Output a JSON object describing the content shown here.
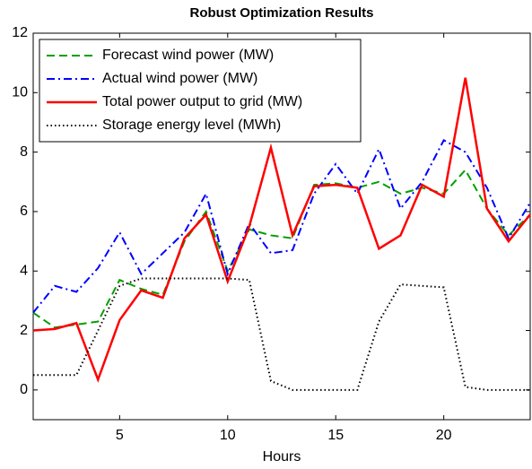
{
  "chart_data": {
    "type": "line",
    "title": "Robust Optimization Results",
    "x_label": "Hours",
    "x": [
      1,
      2,
      3,
      4,
      5,
      6,
      7,
      8,
      9,
      10,
      11,
      12,
      13,
      14,
      15,
      16,
      17,
      18,
      19,
      20,
      21,
      22,
      23,
      24
    ],
    "series": [
      {
        "name": "Forecast wind power (MW)",
        "color": "#00a000",
        "linestyle": "dashed",
        "values": [
          2.6,
          2.1,
          2.2,
          2.3,
          3.7,
          3.4,
          3.2,
          5.0,
          6.0,
          4.0,
          5.4,
          5.2,
          5.1,
          6.9,
          6.95,
          6.8,
          7.0,
          6.6,
          6.8,
          6.6,
          7.4,
          6.1,
          5.2,
          5.9
        ]
      },
      {
        "name": "Actual wind power (MW)",
        "color": "#0000ff",
        "linestyle": "dashdot",
        "values": [
          2.6,
          3.5,
          3.3,
          4.1,
          5.3,
          3.9,
          4.6,
          5.3,
          6.6,
          3.9,
          5.6,
          4.6,
          4.7,
          6.6,
          7.6,
          6.6,
          8.1,
          6.1,
          7.0,
          8.4,
          8.0,
          6.8,
          5.1,
          6.3
        ]
      },
      {
        "name": "Total power output to grid (MW)",
        "color": "#ff0000",
        "linestyle": "solid",
        "values": [
          2.0,
          2.05,
          2.25,
          0.35,
          2.35,
          3.35,
          3.1,
          5.1,
          5.9,
          3.65,
          5.5,
          8.15,
          5.2,
          6.85,
          6.9,
          6.8,
          4.75,
          5.2,
          6.9,
          6.5,
          10.5,
          6.1,
          5.0,
          5.9
        ]
      },
      {
        "name": "Storage energy level (MWh)",
        "color": "#000000",
        "linestyle": "dotted",
        "values": [
          0.5,
          0.5,
          0.5,
          2.0,
          3.5,
          3.75,
          3.75,
          3.75,
          3.75,
          3.75,
          3.7,
          0.3,
          0,
          0,
          0,
          0,
          2.3,
          3.55,
          3.5,
          3.45,
          0.1,
          0,
          0,
          0
        ]
      }
    ],
    "xlim": [
      1,
      24
    ],
    "xticks": [
      5,
      10,
      15,
      20
    ],
    "ylim": [
      -1,
      12
    ],
    "yticks": [
      0,
      2,
      4,
      6,
      8,
      10,
      12
    ],
    "grid": false,
    "legend_position": "upper-left"
  }
}
